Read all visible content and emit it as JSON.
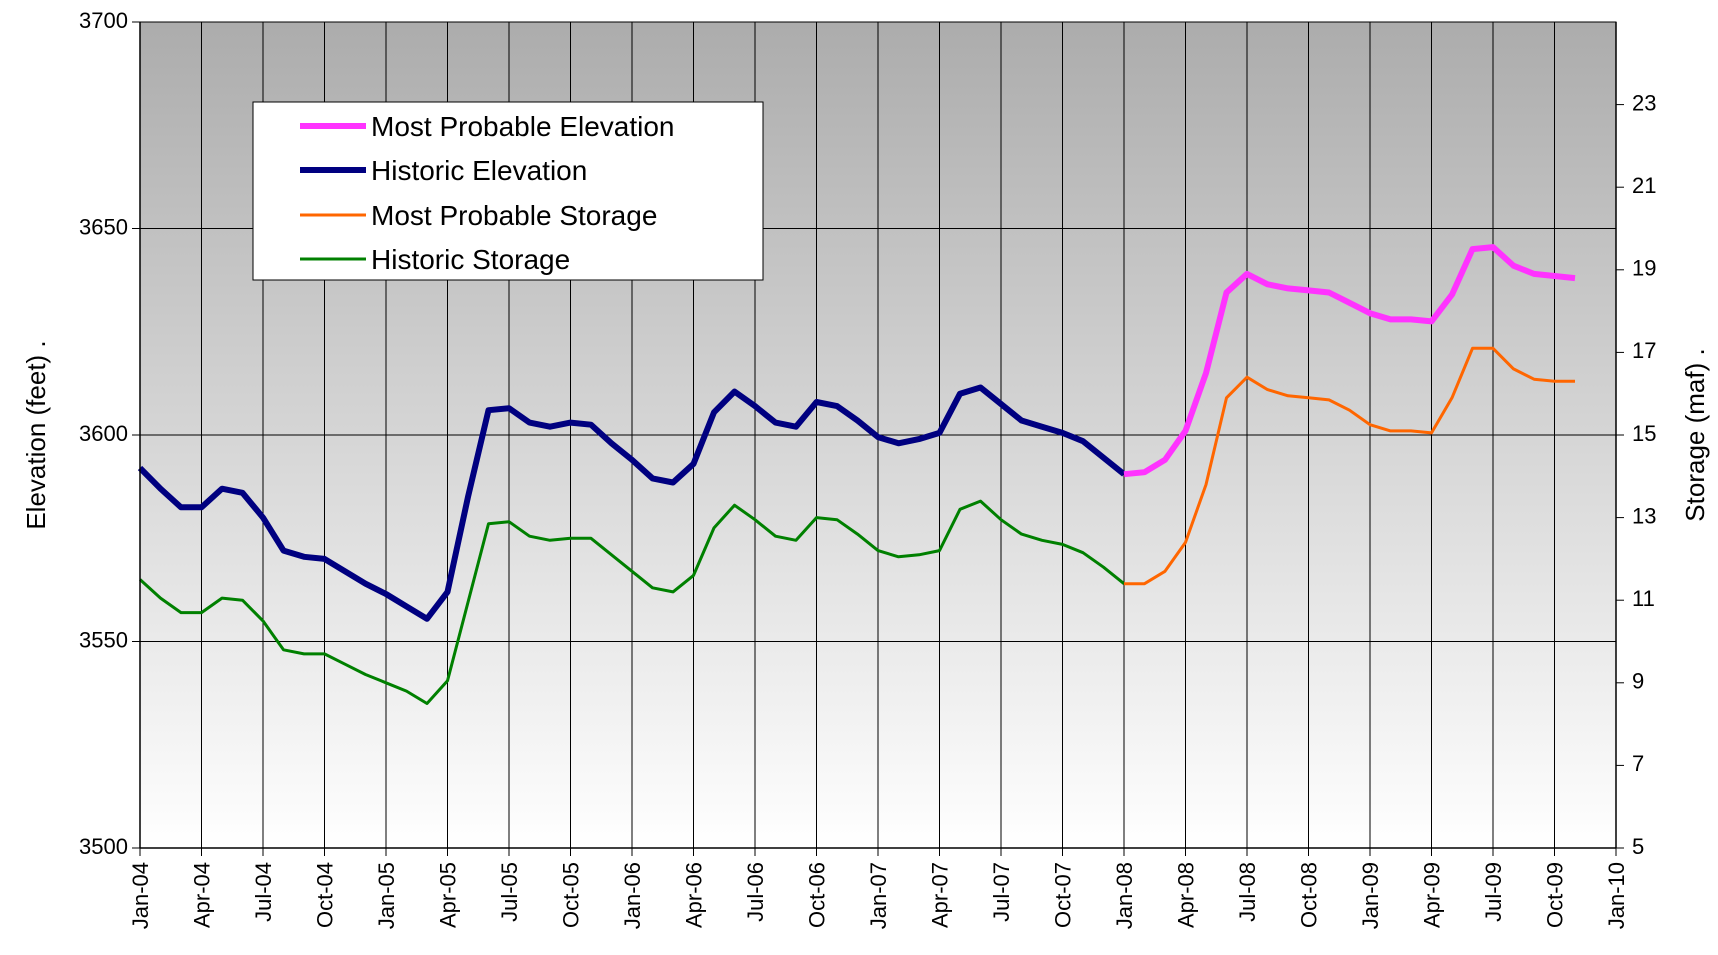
{
  "chart_data": {
    "type": "line",
    "title": "",
    "ylabel": "Elevation (feet) .",
    "y2label": "Storage (maf) .",
    "ylim": [
      3500,
      3700
    ],
    "y2lim": [
      5,
      25
    ],
    "yticks": [
      "3500",
      "3550",
      "3600",
      "3650",
      "3700"
    ],
    "y2ticks": [
      "5",
      "7",
      "9",
      "11",
      "13",
      "15",
      "17",
      "19",
      "21",
      "23"
    ],
    "xticks": [
      "Jan-04",
      "Apr-04",
      "Jul-04",
      "Oct-04",
      "Jan-05",
      "Apr-05",
      "Jul-05",
      "Oct-05",
      "Jan-06",
      "Apr-06",
      "Jul-06",
      "Oct-06",
      "Jan-07",
      "Apr-07",
      "Jul-07",
      "Oct-07",
      "Jan-08",
      "Apr-08",
      "Jul-08",
      "Oct-08",
      "Jan-09",
      "Apr-09",
      "Jul-09",
      "Oct-09",
      "Jan-10"
    ],
    "grid": true,
    "legend_position": "top-left",
    "series": [
      {
        "name": "Most Probable Elevation",
        "axis": "left",
        "color": "#ff33ff",
        "x": [
          "Jan-08",
          "Feb-08",
          "Mar-08",
          "Apr-08",
          "May-08",
          "Jun-08",
          "Jul-08",
          "Aug-08",
          "Sep-08",
          "Oct-08",
          "Nov-08",
          "Dec-08",
          "Jan-09",
          "Feb-09",
          "Mar-09",
          "Apr-09",
          "May-09",
          "Jun-09",
          "Jul-09",
          "Aug-09",
          "Sep-09",
          "Oct-09",
          "Nov-09"
        ],
        "values": [
          3590.5,
          3591,
          3594,
          3601,
          3615,
          3634.5,
          3639,
          3636.5,
          3635.5,
          3635,
          3634.5,
          3632,
          3629.5,
          3628,
          3628,
          3627.5,
          3634,
          3645,
          3645.5,
          3641,
          3639,
          3638.5,
          3638
        ]
      },
      {
        "name": "Historic Elevation",
        "axis": "left",
        "color": "#000080",
        "x": [
          "Jan-04",
          "Feb-04",
          "Mar-04",
          "Apr-04",
          "May-04",
          "Jun-04",
          "Jul-04",
          "Aug-04",
          "Sep-04",
          "Oct-04",
          "Nov-04",
          "Dec-04",
          "Jan-05",
          "Feb-05",
          "Mar-05",
          "Apr-05",
          "May-05",
          "Jun-05",
          "Jul-05",
          "Aug-05",
          "Sep-05",
          "Oct-05",
          "Nov-05",
          "Dec-05",
          "Jan-06",
          "Feb-06",
          "Mar-06",
          "Apr-06",
          "May-06",
          "Jun-06",
          "Jul-06",
          "Aug-06",
          "Sep-06",
          "Oct-06",
          "Nov-06",
          "Dec-06",
          "Jan-07",
          "Feb-07",
          "Mar-07",
          "Apr-07",
          "May-07",
          "Jun-07",
          "Jul-07",
          "Aug-07",
          "Sep-07",
          "Oct-07",
          "Nov-07",
          "Dec-07",
          "Jan-08"
        ],
        "values": [
          3592,
          3587,
          3582.5,
          3582.5,
          3587,
          3586,
          3580,
          3572,
          3570.5,
          3570,
          3567,
          3564,
          3561.5,
          3558.5,
          3555.5,
          3562,
          3585,
          3606,
          3606.5,
          3603,
          3602,
          3603,
          3602.5,
          3598,
          3594,
          3589.5,
          3588.5,
          3593,
          3605.5,
          3610.5,
          3607,
          3603,
          3602,
          3608,
          3607,
          3603.5,
          3599.5,
          3598,
          3599,
          3600.5,
          3610,
          3611.5,
          3607.5,
          3603.5,
          3602,
          3600.5,
          3598.5,
          3594.5,
          3590.5
        ]
      },
      {
        "name": "Most Probable Storage",
        "axis": "right",
        "color": "#ff6600",
        "x": [
          "Jan-08",
          "Feb-08",
          "Mar-08",
          "Apr-08",
          "May-08",
          "Jun-08",
          "Jul-08",
          "Aug-08",
          "Sep-08",
          "Oct-08",
          "Nov-08",
          "Dec-08",
          "Jan-09",
          "Feb-09",
          "Mar-09",
          "Apr-09",
          "May-09",
          "Jun-09",
          "Jul-09",
          "Aug-09",
          "Sep-09",
          "Oct-09",
          "Nov-09"
        ],
        "values": [
          11.4,
          11.4,
          11.7,
          12.4,
          13.8,
          15.9,
          16.4,
          16.1,
          15.95,
          15.9,
          15.85,
          15.6,
          15.25,
          15.1,
          15.1,
          15.05,
          15.9,
          17.1,
          17.1,
          16.6,
          16.35,
          16.3,
          16.3
        ]
      },
      {
        "name": "Historic Storage",
        "axis": "right",
        "color": "#008000",
        "x": [
          "Jan-04",
          "Feb-04",
          "Mar-04",
          "Apr-04",
          "May-04",
          "Jun-04",
          "Jul-04",
          "Aug-04",
          "Sep-04",
          "Oct-04",
          "Nov-04",
          "Dec-04",
          "Jan-05",
          "Feb-05",
          "Mar-05",
          "Apr-05",
          "May-05",
          "Jun-05",
          "Jul-05",
          "Aug-05",
          "Sep-05",
          "Oct-05",
          "Nov-05",
          "Dec-05",
          "Jan-06",
          "Feb-06",
          "Mar-06",
          "Apr-06",
          "May-06",
          "Jun-06",
          "Jul-06",
          "Aug-06",
          "Sep-06",
          "Oct-06",
          "Nov-06",
          "Dec-06",
          "Jan-07",
          "Feb-07",
          "Mar-07",
          "Apr-07",
          "May-07",
          "Jun-07",
          "Jul-07",
          "Aug-07",
          "Sep-07",
          "Oct-07",
          "Nov-07",
          "Dec-07",
          "Jan-08"
        ],
        "values": [
          11.5,
          11.05,
          10.7,
          10.7,
          11.05,
          11,
          10.5,
          9.8,
          9.7,
          9.7,
          9.45,
          9.2,
          9,
          8.8,
          8.5,
          9.05,
          10.95,
          12.85,
          12.9,
          12.55,
          12.45,
          12.5,
          12.5,
          12.1,
          11.7,
          11.3,
          11.2,
          11.6,
          12.75,
          13.3,
          12.95,
          12.55,
          12.45,
          13,
          12.95,
          12.6,
          12.2,
          12.05,
          12.1,
          12.2,
          13.2,
          13.4,
          12.95,
          12.6,
          12.45,
          12.35,
          12.15,
          11.8,
          11.4
        ]
      }
    ]
  }
}
